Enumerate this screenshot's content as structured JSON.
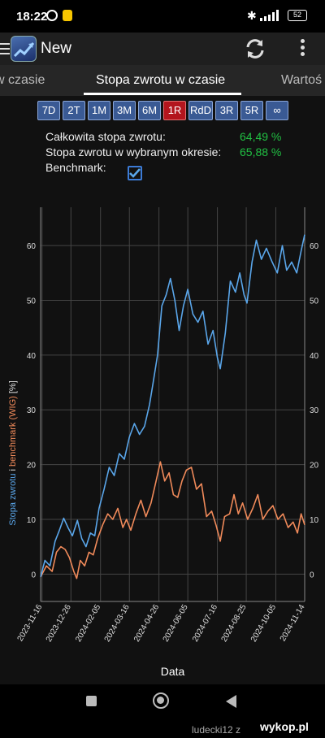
{
  "status_bar": {
    "time": "18:22",
    "battery": "52"
  },
  "app_bar": {
    "title": "New"
  },
  "tabs": [
    {
      "label": "w czasie"
    },
    {
      "label": "Stopa zwrotu w czasie"
    },
    {
      "label": "Wartoś"
    }
  ],
  "periods": [
    {
      "label": "7D"
    },
    {
      "label": "2T"
    },
    {
      "label": "1M"
    },
    {
      "label": "3M"
    },
    {
      "label": "6M"
    },
    {
      "label": "1R"
    },
    {
      "label": "RdD"
    },
    {
      "label": "3R"
    },
    {
      "label": "5R"
    },
    {
      "label": "∞"
    }
  ],
  "selected_period": "1R",
  "stats": {
    "total_label": "Całkowita stopa zwrotu:",
    "total_value": "64,49 %",
    "period_label": "Stopa zwrotu w wybranym okresie:",
    "period_value": "65,88 %",
    "benchmark_label": "Benchmark:",
    "benchmark_checked": true
  },
  "colors": {
    "portfolio": "#5aa6ea",
    "benchmark": "#f08a5a",
    "positive": "#21c043",
    "active_button": "#b3151d",
    "button": "#3a5a94"
  },
  "chart_data": {
    "type": "line",
    "xlabel": "Data",
    "ylabel_parts": [
      "Stopa zwrotu",
      " i ",
      "benchmark (WIG)",
      " [%]"
    ],
    "x_ticks": [
      "2023-11-16",
      "2023-12-26",
      "2024-02-05",
      "2024-03-16",
      "2024-04-26",
      "2024-06-05",
      "2024-07-16",
      "2024-08-25",
      "2024-10-05",
      "2024-11-14"
    ],
    "y_ticks": [
      0,
      10,
      20,
      30,
      40,
      50,
      60
    ],
    "ylim": [
      -5,
      67
    ],
    "x_range": [
      "2023-11-14",
      "2024-11-14"
    ],
    "series": [
      {
        "name": "Stopa zwrotu",
        "color": "#5aa6ea",
        "points": [
          [
            "2023-11-14",
            -0.5
          ],
          [
            "2023-11-20",
            2.5
          ],
          [
            "2023-11-27",
            1.5
          ],
          [
            "2023-12-04",
            6.0
          ],
          [
            "2023-12-10",
            8.0
          ],
          [
            "2023-12-16",
            10.2
          ],
          [
            "2023-12-22",
            8.5
          ],
          [
            "2023-12-28",
            7.0
          ],
          [
            "2024-01-04",
            9.8
          ],
          [
            "2024-01-10",
            6.5
          ],
          [
            "2024-01-16",
            5.0
          ],
          [
            "2024-01-22",
            7.5
          ],
          [
            "2024-01-28",
            7.0
          ],
          [
            "2024-02-03",
            12.0
          ],
          [
            "2024-02-10",
            15.5
          ],
          [
            "2024-02-17",
            19.5
          ],
          [
            "2024-02-24",
            18.0
          ],
          [
            "2024-03-02",
            22.0
          ],
          [
            "2024-03-09",
            21.0
          ],
          [
            "2024-03-16",
            25.0
          ],
          [
            "2024-03-23",
            27.5
          ],
          [
            "2024-03-30",
            25.5
          ],
          [
            "2024-04-06",
            27.0
          ],
          [
            "2024-04-13",
            31.0
          ],
          [
            "2024-04-18",
            35.0
          ],
          [
            "2024-04-24",
            40.0
          ],
          [
            "2024-04-30",
            49.0
          ],
          [
            "2024-05-06",
            51.0
          ],
          [
            "2024-05-12",
            54.0
          ],
          [
            "2024-05-18",
            50.0
          ],
          [
            "2024-05-24",
            44.5
          ],
          [
            "2024-05-30",
            49.0
          ],
          [
            "2024-06-05",
            52.0
          ],
          [
            "2024-06-12",
            47.5
          ],
          [
            "2024-06-19",
            46.0
          ],
          [
            "2024-06-26",
            48.0
          ],
          [
            "2024-07-03",
            42.0
          ],
          [
            "2024-07-10",
            44.5
          ],
          [
            "2024-07-16",
            39.5
          ],
          [
            "2024-07-20",
            37.5
          ],
          [
            "2024-07-27",
            44.0
          ],
          [
            "2024-08-03",
            53.5
          ],
          [
            "2024-08-10",
            51.5
          ],
          [
            "2024-08-16",
            55.0
          ],
          [
            "2024-08-22",
            51.0
          ],
          [
            "2024-08-26",
            49.5
          ],
          [
            "2024-09-02",
            57.0
          ],
          [
            "2024-09-08",
            61.0
          ],
          [
            "2024-09-15",
            57.5
          ],
          [
            "2024-09-22",
            59.5
          ],
          [
            "2024-09-30",
            57.0
          ],
          [
            "2024-10-07",
            55.0
          ],
          [
            "2024-10-14",
            60.0
          ],
          [
            "2024-10-20",
            55.5
          ],
          [
            "2024-10-27",
            57.0
          ],
          [
            "2024-11-03",
            55.0
          ],
          [
            "2024-11-09",
            59.0
          ],
          [
            "2024-11-14",
            62.0
          ]
        ]
      },
      {
        "name": "benchmark (WIG)",
        "color": "#f08a5a",
        "points": [
          [
            "2023-11-14",
            -0.5
          ],
          [
            "2023-11-22",
            1.5
          ],
          [
            "2023-11-30",
            0.5
          ],
          [
            "2023-12-06",
            4.0
          ],
          [
            "2023-12-12",
            5.0
          ],
          [
            "2023-12-18",
            4.5
          ],
          [
            "2023-12-24",
            3.0
          ],
          [
            "2023-12-30",
            0.5
          ],
          [
            "2024-01-03",
            -0.8
          ],
          [
            "2024-01-08",
            2.5
          ],
          [
            "2024-01-14",
            1.5
          ],
          [
            "2024-01-20",
            4.0
          ],
          [
            "2024-01-26",
            3.5
          ],
          [
            "2024-02-01",
            6.5
          ],
          [
            "2024-02-08",
            9.0
          ],
          [
            "2024-02-15",
            11.0
          ],
          [
            "2024-02-22",
            10.0
          ],
          [
            "2024-02-29",
            12.0
          ],
          [
            "2024-03-07",
            8.5
          ],
          [
            "2024-03-12",
            10.0
          ],
          [
            "2024-03-18",
            8.0
          ],
          [
            "2024-03-25",
            11.0
          ],
          [
            "2024-04-01",
            13.5
          ],
          [
            "2024-04-08",
            10.5
          ],
          [
            "2024-04-15",
            13.0
          ],
          [
            "2024-04-22",
            17.0
          ],
          [
            "2024-04-28",
            20.5
          ],
          [
            "2024-05-04",
            17.0
          ],
          [
            "2024-05-10",
            18.5
          ],
          [
            "2024-05-16",
            14.5
          ],
          [
            "2024-05-22",
            14.0
          ],
          [
            "2024-05-28",
            17.0
          ],
          [
            "2024-06-03",
            19.0
          ],
          [
            "2024-06-10",
            19.5
          ],
          [
            "2024-06-17",
            15.5
          ],
          [
            "2024-06-24",
            16.5
          ],
          [
            "2024-07-01",
            10.5
          ],
          [
            "2024-07-08",
            11.5
          ],
          [
            "2024-07-14",
            9.0
          ],
          [
            "2024-07-20",
            6.0
          ],
          [
            "2024-07-26",
            10.5
          ],
          [
            "2024-08-02",
            11.0
          ],
          [
            "2024-08-08",
            14.5
          ],
          [
            "2024-08-14",
            11.0
          ],
          [
            "2024-08-20",
            13.0
          ],
          [
            "2024-08-27",
            10.0
          ],
          [
            "2024-09-03",
            12.0
          ],
          [
            "2024-09-10",
            14.5
          ],
          [
            "2024-09-17",
            10.0
          ],
          [
            "2024-09-24",
            11.5
          ],
          [
            "2024-10-01",
            12.5
          ],
          [
            "2024-10-08",
            10.0
          ],
          [
            "2024-10-15",
            11.0
          ],
          [
            "2024-10-22",
            8.5
          ],
          [
            "2024-10-29",
            9.5
          ],
          [
            "2024-11-04",
            7.5
          ],
          [
            "2024-11-09",
            11.0
          ],
          [
            "2024-11-14",
            9.0
          ]
        ]
      }
    ]
  },
  "watermark": {
    "text": "ludecki12 z",
    "logo": "wykop.pl"
  }
}
